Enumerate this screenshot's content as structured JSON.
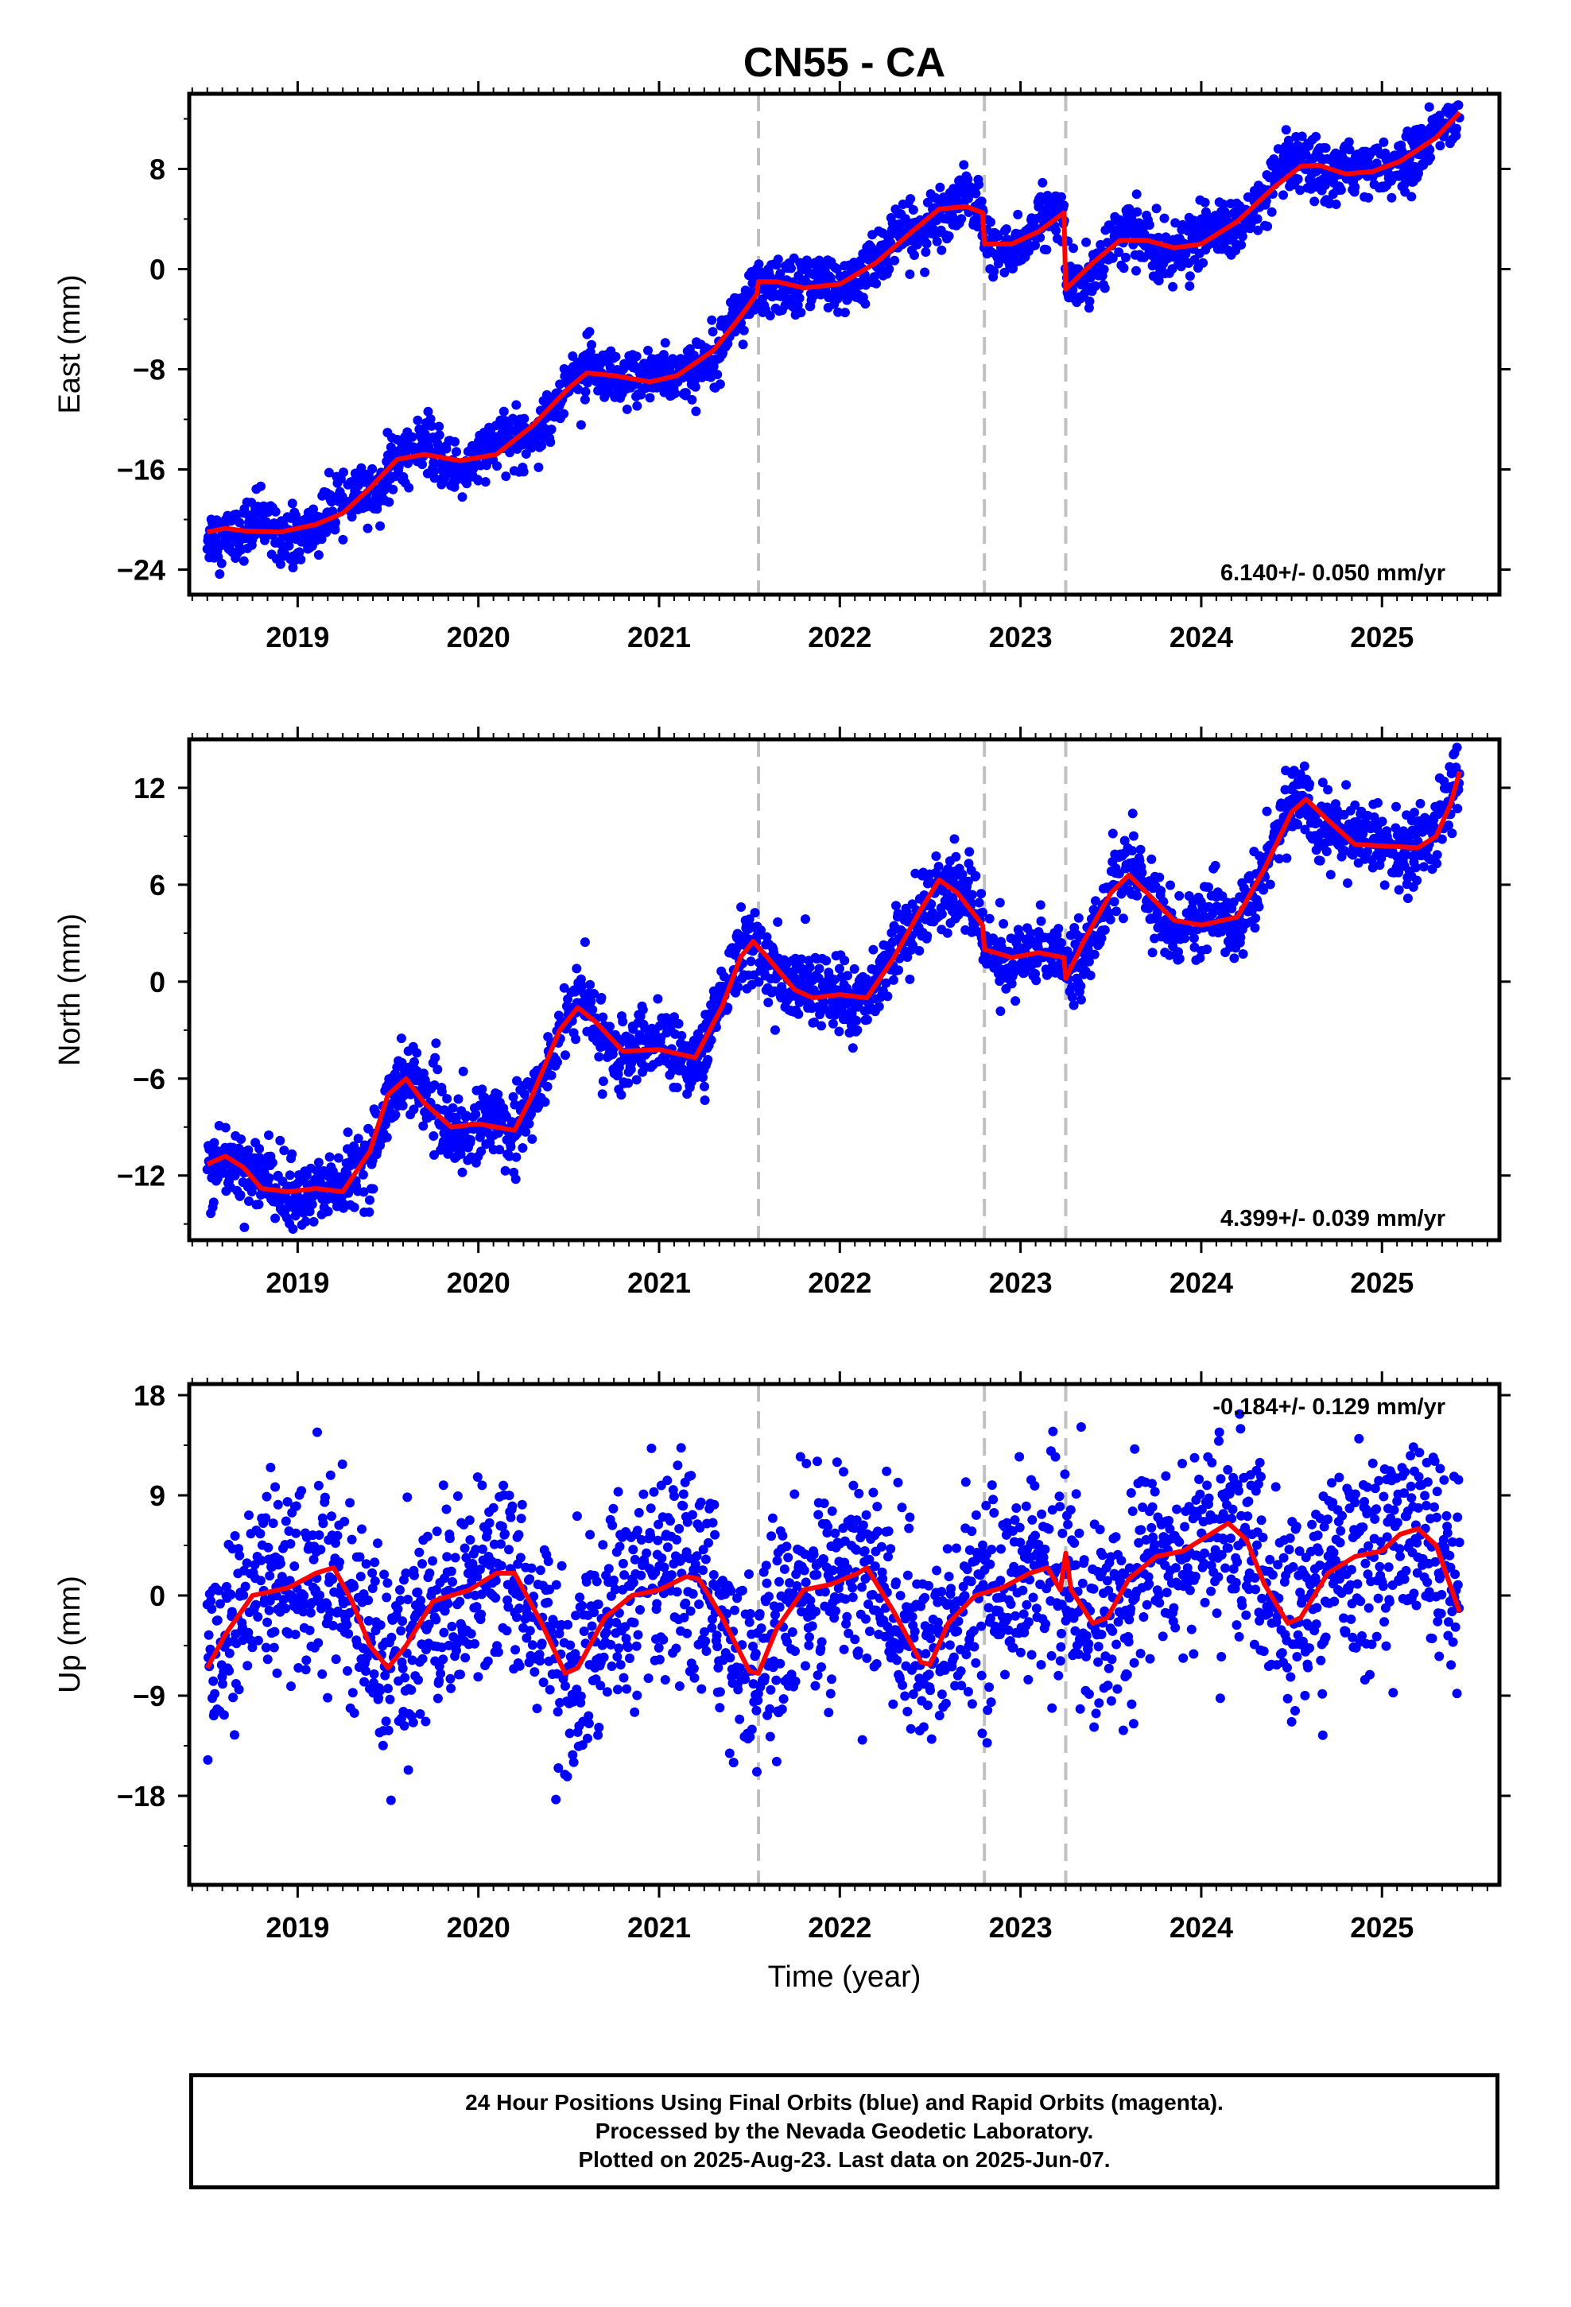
{
  "chart_data": [
    {
      "type": "scatter",
      "title": "CN55 - CA",
      "ylabel": "East (mm)",
      "xlabel": "",
      "rate": "6.140+/- 0.050 mm/yr",
      "xlim": [
        2018.4,
        2025.65
      ],
      "ylim": [
        -26,
        14
      ],
      "yticks": [
        -24,
        -16,
        -8,
        0,
        8
      ],
      "xticks": [
        2019,
        2020,
        2021,
        2022,
        2023,
        2024,
        2025
      ],
      "offsets": [
        2021.55,
        2022.8,
        2023.25
      ],
      "seasonal_amplitude": 0.7,
      "scatter_noise": 1.1,
      "series": [
        {
          "name": "",
          "color": "#0000ff",
          "role": "daily positions"
        },
        {
          "name": "",
          "color": "#ff0000",
          "role": "model fit"
        }
      ],
      "fit": [
        [
          2018.5,
          -21.0
        ],
        [
          2018.6,
          -20.7
        ],
        [
          2018.7,
          -20.9
        ],
        [
          2018.9,
          -21.0
        ],
        [
          2019.1,
          -20.4
        ],
        [
          2019.25,
          -19.5
        ],
        [
          2019.4,
          -17.5
        ],
        [
          2019.55,
          -15.2
        ],
        [
          2019.7,
          -14.8
        ],
        [
          2019.9,
          -15.3
        ],
        [
          2020.1,
          -14.8
        ],
        [
          2020.3,
          -12.5
        ],
        [
          2020.5,
          -9.5
        ],
        [
          2020.6,
          -8.3
        ],
        [
          2020.75,
          -8.5
        ],
        [
          2020.95,
          -9.0
        ],
        [
          2021.1,
          -8.5
        ],
        [
          2021.3,
          -6.5
        ],
        [
          2021.45,
          -3.8
        ],
        [
          2021.54,
          -2.0
        ],
        [
          2021.55,
          -1.0
        ],
        [
          2021.65,
          -1.0
        ],
        [
          2021.8,
          -1.5
        ],
        [
          2022.0,
          -1.2
        ],
        [
          2022.2,
          0.5
        ],
        [
          2022.4,
          3.0
        ],
        [
          2022.55,
          4.8
        ],
        [
          2022.7,
          5.0
        ],
        [
          2022.79,
          4.5
        ],
        [
          2022.8,
          2.0
        ],
        [
          2022.95,
          2.0
        ],
        [
          2023.1,
          3.0
        ],
        [
          2023.24,
          4.5
        ],
        [
          2023.25,
          -1.6
        ],
        [
          2023.4,
          0.5
        ],
        [
          2023.55,
          2.3
        ],
        [
          2023.7,
          2.3
        ],
        [
          2023.85,
          1.7
        ],
        [
          2024.0,
          2.0
        ],
        [
          2024.2,
          3.8
        ],
        [
          2024.4,
          6.5
        ],
        [
          2024.55,
          8.2
        ],
        [
          2024.65,
          8.3
        ],
        [
          2024.8,
          7.6
        ],
        [
          2024.95,
          7.8
        ],
        [
          2025.1,
          8.6
        ],
        [
          2025.3,
          10.5
        ],
        [
          2025.43,
          12.5
        ]
      ]
    },
    {
      "type": "scatter",
      "title": "",
      "ylabel": "North (mm)",
      "xlabel": "",
      "rate": "4.399+/- 0.039 mm/yr",
      "xlim": [
        2018.4,
        2025.65
      ],
      "ylim": [
        -16,
        15
      ],
      "yticks": [
        -12,
        -6,
        0,
        6,
        12
      ],
      "xticks": [
        2019,
        2020,
        2021,
        2022,
        2023,
        2024,
        2025
      ],
      "offsets": [
        2021.55,
        2022.8,
        2023.25
      ],
      "seasonal_amplitude": 0.6,
      "scatter_noise": 1.1,
      "series": [
        {
          "name": "",
          "color": "#0000ff",
          "role": "daily positions"
        },
        {
          "name": "",
          "color": "#ff0000",
          "role": "model fit"
        }
      ],
      "fit": [
        [
          2018.5,
          -11.3
        ],
        [
          2018.6,
          -10.8
        ],
        [
          2018.7,
          -11.5
        ],
        [
          2018.8,
          -12.8
        ],
        [
          2018.95,
          -13.0
        ],
        [
          2019.1,
          -12.8
        ],
        [
          2019.25,
          -13.0
        ],
        [
          2019.4,
          -10.5
        ],
        [
          2019.5,
          -7.0
        ],
        [
          2019.6,
          -6.0
        ],
        [
          2019.7,
          -7.5
        ],
        [
          2019.85,
          -9.0
        ],
        [
          2020.0,
          -8.8
        ],
        [
          2020.2,
          -9.2
        ],
        [
          2020.3,
          -7.0
        ],
        [
          2020.45,
          -3.0
        ],
        [
          2020.55,
          -1.6
        ],
        [
          2020.65,
          -2.5
        ],
        [
          2020.8,
          -4.3
        ],
        [
          2021.0,
          -4.2
        ],
        [
          2021.2,
          -4.7
        ],
        [
          2021.35,
          -1.5
        ],
        [
          2021.45,
          1.5
        ],
        [
          2021.52,
          2.5
        ],
        [
          2021.6,
          1.5
        ],
        [
          2021.75,
          -0.5
        ],
        [
          2021.85,
          -1.0
        ],
        [
          2022.0,
          -0.8
        ],
        [
          2022.15,
          -1.0
        ],
        [
          2022.3,
          1.5
        ],
        [
          2022.45,
          4.5
        ],
        [
          2022.55,
          6.3
        ],
        [
          2022.65,
          5.5
        ],
        [
          2022.79,
          3.5
        ],
        [
          2022.8,
          2.0
        ],
        [
          2022.95,
          1.5
        ],
        [
          2023.1,
          1.8
        ],
        [
          2023.24,
          1.5
        ],
        [
          2023.25,
          0.2
        ],
        [
          2023.35,
          2.5
        ],
        [
          2023.5,
          5.5
        ],
        [
          2023.6,
          6.6
        ],
        [
          2023.7,
          5.5
        ],
        [
          2023.85,
          3.8
        ],
        [
          2024.0,
          3.5
        ],
        [
          2024.2,
          4.0
        ],
        [
          2024.35,
          7.0
        ],
        [
          2024.5,
          10.5
        ],
        [
          2024.58,
          11.3
        ],
        [
          2024.7,
          10.0
        ],
        [
          2024.85,
          8.5
        ],
        [
          2025.0,
          8.4
        ],
        [
          2025.2,
          8.3
        ],
        [
          2025.3,
          9.0
        ],
        [
          2025.38,
          11.0
        ],
        [
          2025.43,
          13.0
        ]
      ]
    },
    {
      "type": "scatter",
      "title": "",
      "ylabel": "Up (mm)",
      "xlabel": "Time (year)",
      "rate": "-0.184+/- 0.129 mm/yr",
      "xlim": [
        2018.4,
        2025.65
      ],
      "ylim": [
        -26,
        19
      ],
      "yticks": [
        -18,
        -9,
        0,
        9,
        18
      ],
      "xticks": [
        2019,
        2020,
        2021,
        2022,
        2023,
        2024,
        2025
      ],
      "offsets": [
        2021.55,
        2022.8,
        2023.25
      ],
      "seasonal_amplitude": 0,
      "scatter_noise": 4.5,
      "series": [
        {
          "name": "",
          "color": "#0000ff",
          "role": "daily positions"
        },
        {
          "name": "",
          "color": "#ff0000",
          "role": "model fit"
        }
      ],
      "fit": [
        [
          2018.5,
          -6.5
        ],
        [
          2018.6,
          -3.5
        ],
        [
          2018.75,
          0.0
        ],
        [
          2018.95,
          0.7
        ],
        [
          2019.1,
          2.0
        ],
        [
          2019.2,
          2.5
        ],
        [
          2019.3,
          -0.5
        ],
        [
          2019.4,
          -4.5
        ],
        [
          2019.5,
          -6.5
        ],
        [
          2019.6,
          -4.5
        ],
        [
          2019.75,
          -0.5
        ],
        [
          2019.95,
          0.5
        ],
        [
          2020.1,
          2.0
        ],
        [
          2020.2,
          2.0
        ],
        [
          2020.35,
          -2.5
        ],
        [
          2020.48,
          -7.0
        ],
        [
          2020.55,
          -6.5
        ],
        [
          2020.7,
          -2.0
        ],
        [
          2020.85,
          0.0
        ],
        [
          2021.0,
          0.5
        ],
        [
          2021.15,
          1.7
        ],
        [
          2021.22,
          1.5
        ],
        [
          2021.35,
          -2.0
        ],
        [
          2021.5,
          -6.8
        ],
        [
          2021.55,
          -7.0
        ],
        [
          2021.65,
          -3.0
        ],
        [
          2021.8,
          0.5
        ],
        [
          2021.95,
          1.0
        ],
        [
          2022.1,
          2.0
        ],
        [
          2022.15,
          2.5
        ],
        [
          2022.3,
          -1.5
        ],
        [
          2022.45,
          -6.0
        ],
        [
          2022.5,
          -6.2
        ],
        [
          2022.6,
          -2.5
        ],
        [
          2022.75,
          0.0
        ],
        [
          2022.9,
          0.7
        ],
        [
          2023.05,
          2.0
        ],
        [
          2023.15,
          2.5
        ],
        [
          2023.22,
          0.5
        ],
        [
          2023.25,
          3.8
        ],
        [
          2023.28,
          0.5
        ],
        [
          2023.4,
          -2.5
        ],
        [
          2023.48,
          -2.0
        ],
        [
          2023.6,
          1.5
        ],
        [
          2023.75,
          3.5
        ],
        [
          2023.9,
          4.0
        ],
        [
          2024.05,
          5.5
        ],
        [
          2024.15,
          6.5
        ],
        [
          2024.25,
          5.0
        ],
        [
          2024.35,
          1.0
        ],
        [
          2024.48,
          -2.5
        ],
        [
          2024.55,
          -2.0
        ],
        [
          2024.7,
          2.0
        ],
        [
          2024.85,
          3.5
        ],
        [
          2025.0,
          4.0
        ],
        [
          2025.1,
          5.5
        ],
        [
          2025.2,
          6.0
        ],
        [
          2025.3,
          4.5
        ],
        [
          2025.43,
          -1.5
        ]
      ]
    }
  ],
  "footer": {
    "line1": "24 Hour Positions Using Final Orbits (blue) and Rapid Orbits (magenta).",
    "line2": "Processed by the Nevada Geodetic Laboratory.",
    "line3": "Plotted on 2025-Aug-23. Last data on 2025-Jun-07."
  }
}
